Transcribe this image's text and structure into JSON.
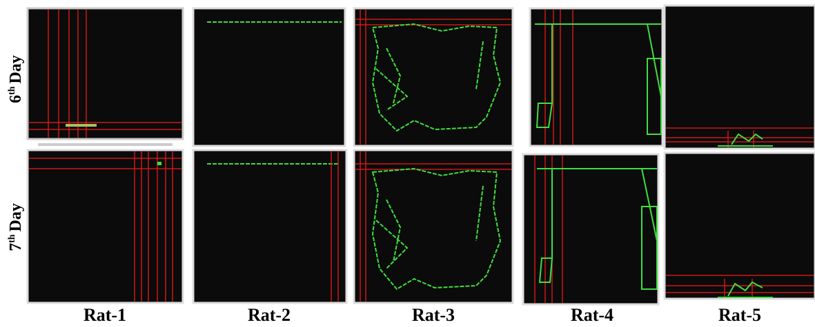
{
  "rows": [
    {
      "number": "6",
      "sup": "th",
      "label": "Day"
    },
    {
      "number": "7",
      "sup": "th",
      "label": "Day"
    }
  ],
  "columns": [
    "Rat-1",
    "Rat-2",
    "Rat-3",
    "Rat-4",
    "Rat-5"
  ]
}
